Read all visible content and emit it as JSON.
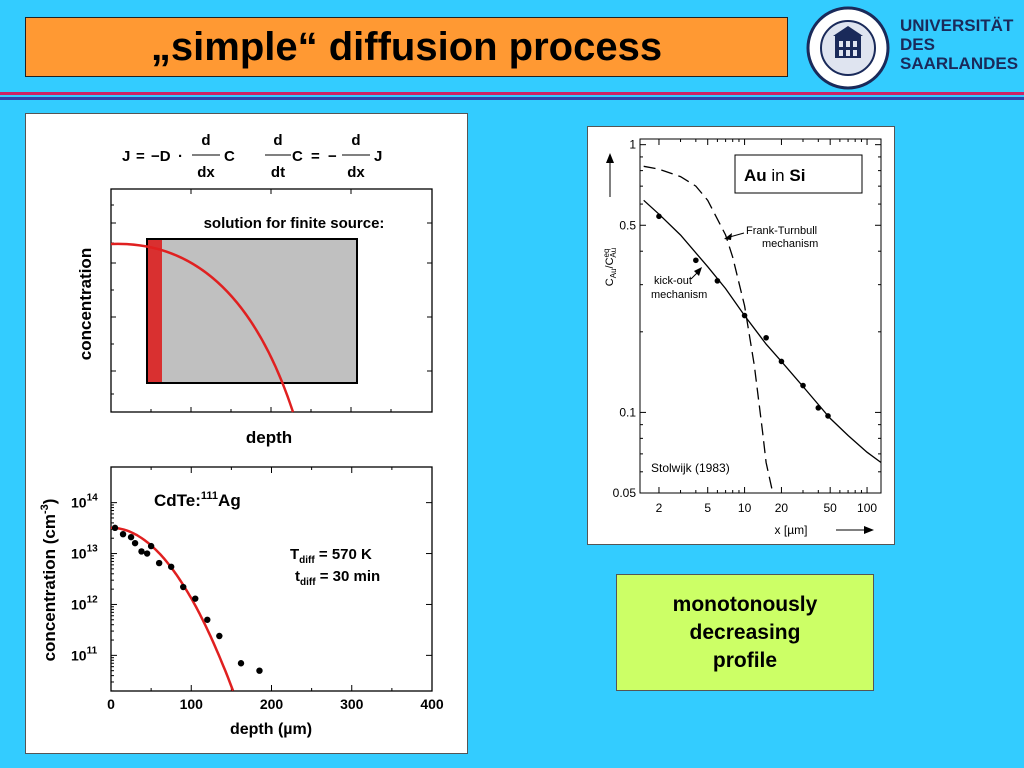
{
  "slide": {
    "title": "„simple“ diffusion process",
    "logo": {
      "line1": "UNIVERSITÄT",
      "line2": "DES",
      "line3": "SAARLANDES",
      "seal_text": "UNIVERSITAS SARAVIENSIS"
    },
    "colors": {
      "background": "#33ccff",
      "title_box": "#ff9933",
      "note_box": "#ccff66",
      "curve": "#e02020"
    }
  },
  "equations": {
    "fick1_lhs": "J",
    "eq": "=",
    "minus_D": "−D",
    "dot": "·",
    "d": "d",
    "dx": "dx",
    "dt": "dt",
    "C": "C",
    "minus": "−",
    "J": "J"
  },
  "schematic": {
    "annotation": "solution for finite source:",
    "ylabel": "concentration",
    "xlabel": "depth"
  },
  "chart_data": [
    {
      "type": "scatter",
      "title": "CdTe:111Ag",
      "title_main": "CdTe:",
      "title_sup": "111",
      "title_end": "Ag",
      "xlabel": "depth  (µm)",
      "ylabel": "concentration  (cm",
      "ylabel_sup": "-3",
      "ylabel_close": ")",
      "xlim": [
        0,
        400
      ],
      "ylim_log10": [
        10.3,
        14.7
      ],
      "log_y": true,
      "xticks": [
        "0",
        "100",
        "200",
        "300",
        "400"
      ],
      "yticks": [
        {
          "base": "10",
          "exp": "14"
        },
        {
          "base": "10",
          "exp": "13"
        },
        {
          "base": "10",
          "exp": "12"
        },
        {
          "base": "10",
          "exp": "11"
        }
      ],
      "annotations": {
        "t1_main": "T",
        "t1_sub": "diff",
        "t1_val": " = 570 K",
        "t2_main": "t",
        "t2_sub": "diff",
        "t2_val": " = 30 min"
      },
      "points": [
        {
          "x": 5,
          "y": 32000000000000.0
        },
        {
          "x": 15,
          "y": 24000000000000.0
        },
        {
          "x": 25,
          "y": 21000000000000.0
        },
        {
          "x": 30,
          "y": 16000000000000.0
        },
        {
          "x": 38,
          "y": 11000000000000.0
        },
        {
          "x": 45,
          "y": 10000000000000.0
        },
        {
          "x": 50,
          "y": 14000000000000.0
        },
        {
          "x": 60,
          "y": 6500000000000.0
        },
        {
          "x": 75,
          "y": 5500000000000.0
        },
        {
          "x": 90,
          "y": 2200000000000.0
        },
        {
          "x": 105,
          "y": 1300000000000.0
        },
        {
          "x": 120,
          "y": 500000000000.0
        },
        {
          "x": 135,
          "y": 240000000000.0
        },
        {
          "x": 162,
          "y": 70000000000.0
        },
        {
          "x": 185,
          "y": 50000000000.0
        }
      ],
      "fit": {
        "N0": 32000000000000.0,
        "L_um": 56
      }
    },
    {
      "type": "line",
      "log_x": true,
      "log_y": true,
      "xlabel": "x [µm]",
      "ylabel": "C",
      "ylabel_sub": "Au",
      "ylabel_mid": "/C",
      "ylabel_sup": "eq",
      "ylabel_sub2": "Au",
      "xlim": [
        1.4,
        130
      ],
      "ylim": [
        0.05,
        1.05
      ],
      "xticks": [
        "2",
        "5",
        "10",
        "20",
        "50",
        "100"
      ],
      "yticks": [
        "1",
        "0.5",
        "0.1",
        "0.05"
      ],
      "legend_title_main": "Au",
      "legend_title_mid": " in ",
      "legend_title_end": "Si",
      "label_frank_1": "Frank-Turnbull",
      "label_frank_2": "mechanism",
      "label_kick_1": "kick-out",
      "label_kick_2": "mechanism",
      "citation": "Stolwijk (1983)",
      "series": [
        {
          "name": "kick-out mechanism",
          "style": "solid",
          "x": [
            1.5,
            2,
            3,
            5,
            7,
            10,
            15,
            20,
            30,
            50,
            70,
            100,
            130
          ],
          "y": [
            0.62,
            0.55,
            0.46,
            0.35,
            0.29,
            0.23,
            0.18,
            0.155,
            0.125,
            0.095,
            0.082,
            0.071,
            0.065
          ]
        },
        {
          "name": "Frank-Turnbull mechanism",
          "style": "dashed",
          "x": [
            1.5,
            2,
            3,
            4,
            5,
            7,
            8,
            10,
            12,
            14,
            15,
            17
          ],
          "y": [
            0.83,
            0.81,
            0.76,
            0.7,
            0.62,
            0.46,
            0.38,
            0.25,
            0.15,
            0.085,
            0.065,
            0.05
          ]
        }
      ],
      "points": [
        {
          "x": 2,
          "y": 0.54
        },
        {
          "x": 4,
          "y": 0.37
        },
        {
          "x": 6,
          "y": 0.31
        },
        {
          "x": 10,
          "y": 0.23
        },
        {
          "x": 15,
          "y": 0.19
        },
        {
          "x": 20,
          "y": 0.155
        },
        {
          "x": 30,
          "y": 0.126
        },
        {
          "x": 40,
          "y": 0.104
        },
        {
          "x": 48,
          "y": 0.097
        }
      ]
    }
  ],
  "note": {
    "text": "monotonously\ndecreasing\nprofile"
  }
}
